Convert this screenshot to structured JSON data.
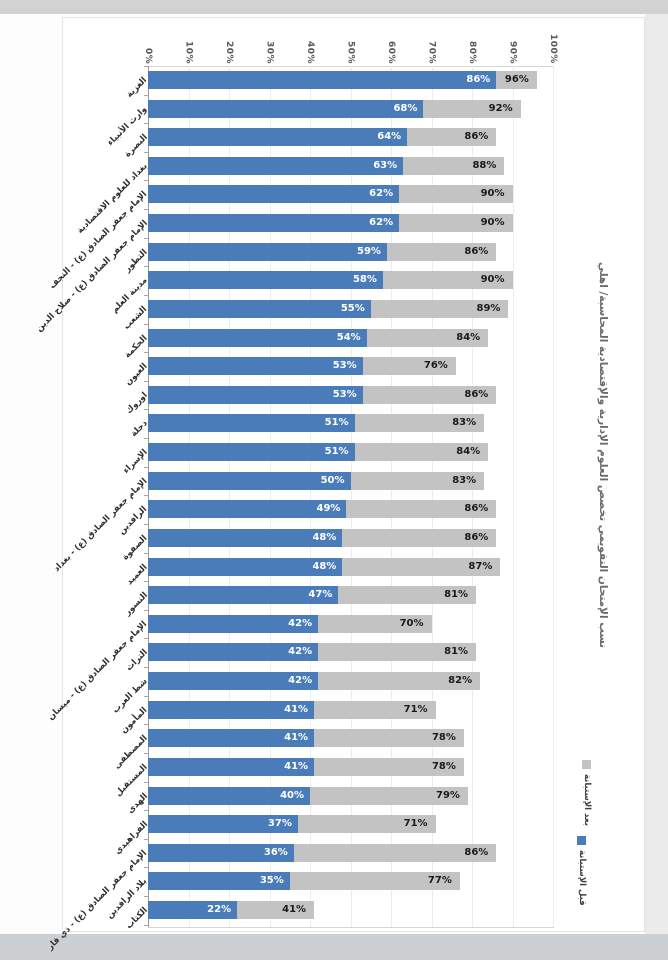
{
  "title": "نسب الإمتحان التقويمي تخصص العلوم الإدارية والإقتصادية المحاسبة/ اهلي",
  "axis": {
    "ticks": [
      "0%",
      "10%",
      "20%",
      "30%",
      "40%",
      "50%",
      "60%",
      "70%",
      "80%",
      "90%",
      "100%"
    ]
  },
  "legend": {
    "items": [
      {
        "label": "بعد الإستبانة",
        "color": "#c3c3c3",
        "swatch": "gray-square"
      },
      {
        "label": "قبل الإستبانة",
        "color": "#4a7cba",
        "swatch": "blue-square"
      }
    ]
  },
  "colors": {
    "before_bar": "#4a7cba",
    "after_bar": "#c3c3c3",
    "before_label": "#ffffff",
    "after_label": "#1a1a1a"
  },
  "chart_data": {
    "type": "bar",
    "orientation": "horizontal-overlapped",
    "title": "نسب الإمتحان التقويمي تخصص العلوم الإدارية والإقتصادية المحاسبة/ اهلي",
    "xlim": [
      0,
      100
    ],
    "value_suffix": "%",
    "grid": true,
    "legend_position": "right",
    "categories": [
      "الغزية",
      "وارث الأنبياء",
      "البصرة",
      "بغداد للعلوم الاقتصادية",
      "الإمام جعفر الصادق (ع) - النجف",
      "الإمام جعفر الصادق (ع) - صلاح الدين",
      "التطور",
      "مدينة العلم",
      "الشعب",
      "الحكمة",
      "العيون",
      "اوروك",
      "دجلة",
      "الإسراء",
      "الإمام جعفر الصادق (ع) - بغداد",
      "الرافدين",
      "الصفوة",
      "العميد",
      "النسور",
      "الإمام جعفر الصادق (ع) - ميسان",
      "التراث",
      "شط العرب",
      "المأمون",
      "المصطفى",
      "المستقبل",
      "الهدى",
      "الفراهيدي",
      "الإمام جعفر الصادق (ع) - ذي قار",
      "بلاد الرافدين",
      "الكتاب"
    ],
    "series": [
      {
        "name": "قبل الإستبانة",
        "color": "#4a7cba",
        "values": [
          86,
          68,
          64,
          63,
          62,
          62,
          59,
          58,
          55,
          54,
          53,
          53,
          51,
          51,
          50,
          49,
          48,
          48,
          47,
          42,
          42,
          42,
          41,
          41,
          41,
          40,
          37,
          36,
          35,
          22
        ]
      },
      {
        "name": "بعد الإستبانة",
        "color": "#c3c3c3",
        "values": [
          96,
          92,
          86,
          88,
          90,
          90,
          86,
          90,
          89,
          84,
          76,
          86,
          83,
          84,
          83,
          86,
          86,
          87,
          81,
          70,
          81,
          82,
          71,
          78,
          78,
          79,
          71,
          86,
          77,
          41
        ]
      }
    ]
  }
}
